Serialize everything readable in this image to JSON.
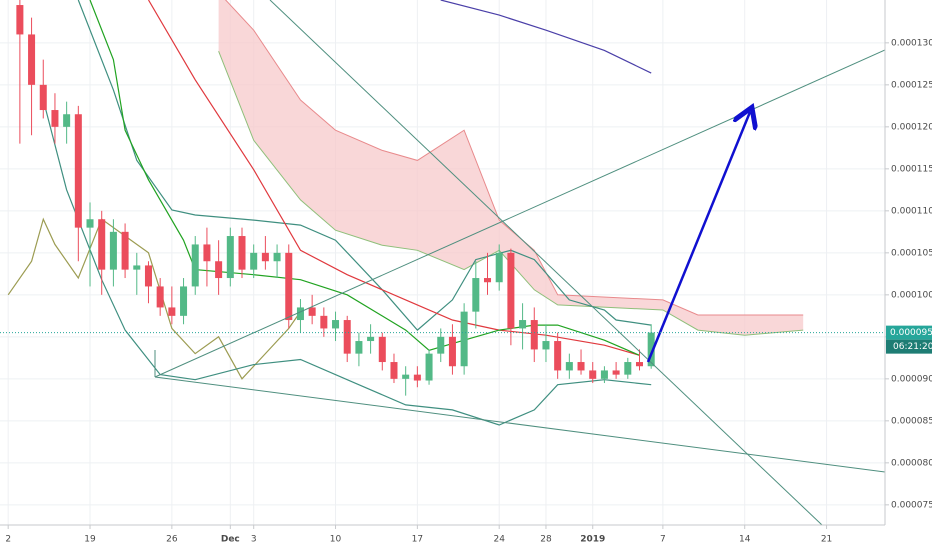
{
  "chart_data": {
    "type": "candlestick",
    "xlim": [
      -0.7,
      75
    ],
    "xticks": [
      {
        "value": 0,
        "label": "2"
      },
      {
        "value": 7,
        "label": "19"
      },
      {
        "value": 14,
        "label": "26"
      },
      {
        "value": 19,
        "label": "Dec"
      },
      {
        "value": 21,
        "label": "3"
      },
      {
        "value": 28,
        "label": "10"
      },
      {
        "value": 35,
        "label": "17"
      },
      {
        "value": 42,
        "label": "24"
      },
      {
        "value": 46,
        "label": "28"
      },
      {
        "value": 50,
        "label": "2019"
      },
      {
        "value": 56,
        "label": "7"
      },
      {
        "value": 63,
        "label": "14"
      },
      {
        "value": 70,
        "label": "21"
      }
    ],
    "ylim": [
      7.26e-05,
      0.0001351
    ],
    "yticks": [
      {
        "value": 7.5e-05,
        "label": "0.0000750"
      },
      {
        "value": 8e-05,
        "label": "0.0000800"
      },
      {
        "value": 8.5e-05,
        "label": "0.0000850"
      },
      {
        "value": 9e-05,
        "label": "0.0000900"
      },
      {
        "value": 9.5e-05,
        "label": "0.0000950"
      },
      {
        "value": 0.0001,
        "label": "0.0001000"
      },
      {
        "value": 0.000105,
        "label": "0.0001050"
      },
      {
        "value": 0.00011,
        "label": "0.0001100"
      },
      {
        "value": 0.000115,
        "label": "0.0001150"
      },
      {
        "value": 0.00012,
        "label": "0.0001200"
      },
      {
        "value": 0.000125,
        "label": "0.0001250"
      },
      {
        "value": 0.00013,
        "label": "0.0001300"
      }
    ],
    "grid": true,
    "up_color": "#53b987",
    "down_color": "#eb4d5c",
    "x": [
      1,
      2,
      3,
      4,
      5,
      6,
      7,
      8,
      9,
      10,
      11,
      12,
      13,
      14,
      15,
      16,
      17,
      18,
      19,
      20,
      21,
      22,
      23,
      24,
      25,
      26,
      27,
      28,
      29,
      30,
      31,
      32,
      33,
      34,
      35,
      36,
      37,
      38,
      39,
      40,
      41,
      42,
      43,
      44,
      45,
      46,
      47,
      48,
      49,
      50,
      51,
      52,
      53,
      54,
      55
    ],
    "open": [
      0.0001345,
      0.000131,
      0.000125,
      0.000122,
      0.00012,
      0.0001215,
      0.000108,
      0.000109,
      0.000103,
      0.0001075,
      0.000103,
      0.0001035,
      0.000101,
      9.85e-05,
      9.75e-05,
      0.000101,
      0.000106,
      0.000104,
      0.000102,
      0.000107,
      0.000103,
      0.000105,
      0.000104,
      0.000105,
      9.7e-05,
      9.85e-05,
      9.75e-05,
      9.6e-05,
      9.7e-05,
      9.3e-05,
      9.45e-05,
      9.5e-05,
      9.2e-05,
      9e-05,
      9.05e-05,
      8.98e-05,
      9.3e-05,
      9.5e-05,
      9.15e-05,
      9.8e-05,
      0.000102,
      0.0001015,
      0.000105,
      9.6e-05,
      9.7e-05,
      9.35e-05,
      9.45e-05,
      9.1e-05,
      9.2e-05,
      9.1e-05,
      9e-05,
      9.1e-05,
      9.05e-05,
      9.2e-05,
      9.15e-05
    ],
    "high": [
      0.0001351,
      0.000133,
      0.000128,
      0.000124,
      0.000123,
      0.0001225,
      0.000111,
      0.00011,
      0.000109,
      0.0001085,
      0.000105,
      0.000104,
      0.000102,
      0.000101,
      0.000102,
      0.000107,
      0.000108,
      0.0001065,
      0.000108,
      0.000108,
      0.000106,
      0.000107,
      0.000106,
      0.000106,
      9.95e-05,
      0.0001,
      9.85e-05,
      9.8e-05,
      9.75e-05,
      9.55e-05,
      9.65e-05,
      9.55e-05,
      9.3e-05,
      9.15e-05,
      9.15e-05,
      9.35e-05,
      9.6e-05,
      9.65e-05,
      9.9e-05,
      0.000104,
      0.000105,
      0.000106,
      0.0001055,
      9.9e-05,
      9.85e-05,
      9.65e-05,
      9.55e-05,
      9.3e-05,
      9.35e-05,
      9.2e-05,
      9.15e-05,
      9.2e-05,
      9.25e-05,
      9.35e-05,
      9.65e-05
    ],
    "low": [
      0.000118,
      0.000119,
      0.000121,
      0.000118,
      0.000118,
      0.000104,
      0.000101,
      0.0001,
      0.000101,
      0.000102,
      0.0001,
      9.9e-05,
      9.75e-05,
      9.65e-05,
      9.65e-05,
      0.0001,
      0.000101,
      0.0001,
      0.000101,
      0.000102,
      0.000102,
      0.000103,
      0.000102,
      9.6e-05,
      9.55e-05,
      9.65e-05,
      9.5e-05,
      9.45e-05,
      9.2e-05,
      9.15e-05,
      9.3e-05,
      9.1e-05,
      8.95e-05,
      8.8e-05,
      8.9e-05,
      8.93e-05,
      9.2e-05,
      9.05e-05,
      9.05e-05,
      9.6e-05,
      0.0001,
      0.0001005,
      9.4e-05,
      9.35e-05,
      9.2e-05,
      9.2e-05,
      9e-05,
      9e-05,
      9.05e-05,
      8.95e-05,
      8.95e-05,
      9e-05,
      9e-05,
      9.1e-05,
      9.12e-05
    ],
    "close": [
      0.000131,
      0.000125,
      0.000122,
      0.00012,
      0.0001215,
      0.000108,
      0.000109,
      0.000103,
      0.0001075,
      0.000103,
      0.0001035,
      0.000101,
      9.85e-05,
      9.75e-05,
      0.000101,
      0.000106,
      0.000104,
      0.000102,
      0.000107,
      0.000103,
      0.000105,
      0.000104,
      0.000105,
      9.7e-05,
      9.85e-05,
      9.75e-05,
      9.6e-05,
      9.7e-05,
      9.3e-05,
      9.45e-05,
      9.5e-05,
      9.2e-05,
      9e-05,
      9.05e-05,
      8.98e-05,
      9.3e-05,
      9.5e-05,
      9.15e-05,
      9.8e-05,
      0.000102,
      0.0001015,
      0.000105,
      9.6e-05,
      9.7e-05,
      9.35e-05,
      9.45e-05,
      9.1e-05,
      9.2e-05,
      9.1e-05,
      9e-05,
      9.1e-05,
      9.05e-05,
      9.2e-05,
      9.15e-05,
      9.55e-05
    ],
    "cloud": {
      "x": [
        18,
        21,
        25,
        28,
        32,
        35,
        39,
        42,
        45,
        47,
        56,
        59,
        63,
        68
      ],
      "upper": [
        0.000136,
        0.0001315,
        0.0001232,
        0.0001196,
        0.0001172,
        0.000116,
        0.0001196,
        0.0001089,
        0.0001053,
        0.0001,
        9.94e-05,
        9.76e-05,
        9.76e-05,
        9.76e-05
      ],
      "lower": [
        0.000129,
        0.0001184,
        0.0001113,
        0.0001077,
        0.0001059,
        0.0001053,
        0.000103,
        0.0001053,
        0.0001006,
        9.88e-05,
        9.82e-05,
        9.58e-05,
        9.52e-05,
        9.58e-05
      ],
      "fill": "#f7c9cb",
      "upper_color": "#e88a8c",
      "lower_color": "#8fbf7a"
    },
    "overlays": [
      {
        "color": "#9c9c52",
        "x": [
          0,
          2,
          3,
          4,
          6,
          8,
          10,
          12,
          14,
          16,
          18,
          20,
          22,
          24,
          25
        ],
        "values": [
          0.0001,
          0.000104,
          0.000109,
          0.000106,
          0.000102,
          0.000109,
          0.000107,
          0.000105,
          9.6e-05,
          9.3e-05,
          9.5e-05,
          9e-05,
          9.3e-05,
          9.6e-05,
          9.8e-05
        ]
      },
      {
        "color": "#3f8f80",
        "x": [
          6,
          9,
          11,
          14,
          16,
          21,
          25,
          28,
          32,
          35,
          38,
          40,
          43,
          45,
          48,
          51,
          52,
          55
        ],
        "values": [
          0.0001351,
          0.0001244,
          0.000116,
          0.0001101,
          0.0001095,
          0.0001089,
          0.0001083,
          0.0001065,
          0.0001006,
          9.58e-05,
          9.94e-05,
          0.0001042,
          0.0001053,
          0.0001042,
          9.94e-05,
          9.82e-05,
          9.7e-05,
          9.64e-05
        ]
      },
      {
        "color": "#3f8f80",
        "x": [
          3,
          5,
          8,
          10,
          13,
          16,
          21,
          25,
          29,
          34,
          38,
          42,
          45,
          47,
          51,
          55
        ],
        "values": [
          0.0001232,
          0.0001125,
          0.0001018,
          9.58e-05,
          9.05e-05,
          8.99e-05,
          9.17e-05,
          9.23e-05,
          8.99e-05,
          8.69e-05,
          8.63e-05,
          8.45e-05,
          8.63e-05,
          8.93e-05,
          8.99e-05,
          8.93e-05
        ]
      },
      {
        "color": "#e0393e",
        "x": [
          12,
          16,
          21,
          25,
          29,
          34,
          38,
          42,
          46,
          51,
          54
        ],
        "values": [
          0.0001351,
          0.0001256,
          0.0001149,
          0.0001053,
          0.0001024,
          9.94e-05,
          9.7e-05,
          9.58e-05,
          9.52e-05,
          9.4e-05,
          9.28e-05
        ]
      },
      {
        "color": "#21a321",
        "x": [
          7,
          9,
          10,
          12,
          15,
          16,
          21,
          25,
          29,
          34,
          36,
          39,
          42,
          45,
          47,
          51,
          54
        ],
        "values": [
          0.0001351,
          0.000128,
          0.0001196,
          0.0001137,
          0.0001065,
          0.000103,
          0.0001024,
          0.0001018,
          0.0001,
          9.58e-05,
          9.34e-05,
          9.46e-05,
          9.58e-05,
          9.64e-05,
          9.64e-05,
          9.46e-05,
          9.28e-05
        ]
      },
      {
        "color": "#4a3fa8",
        "x": [
          37,
          42,
          46,
          51,
          55
        ],
        "values": [
          0.0001351,
          0.0001333,
          0.0001315,
          0.0001291,
          0.0001264
        ]
      }
    ],
    "last_price": {
      "value": 9.55e-05,
      "label": "0.0000955"
    },
    "price_color": "#26a69a",
    "countdown": "06:21:20"
  }
}
